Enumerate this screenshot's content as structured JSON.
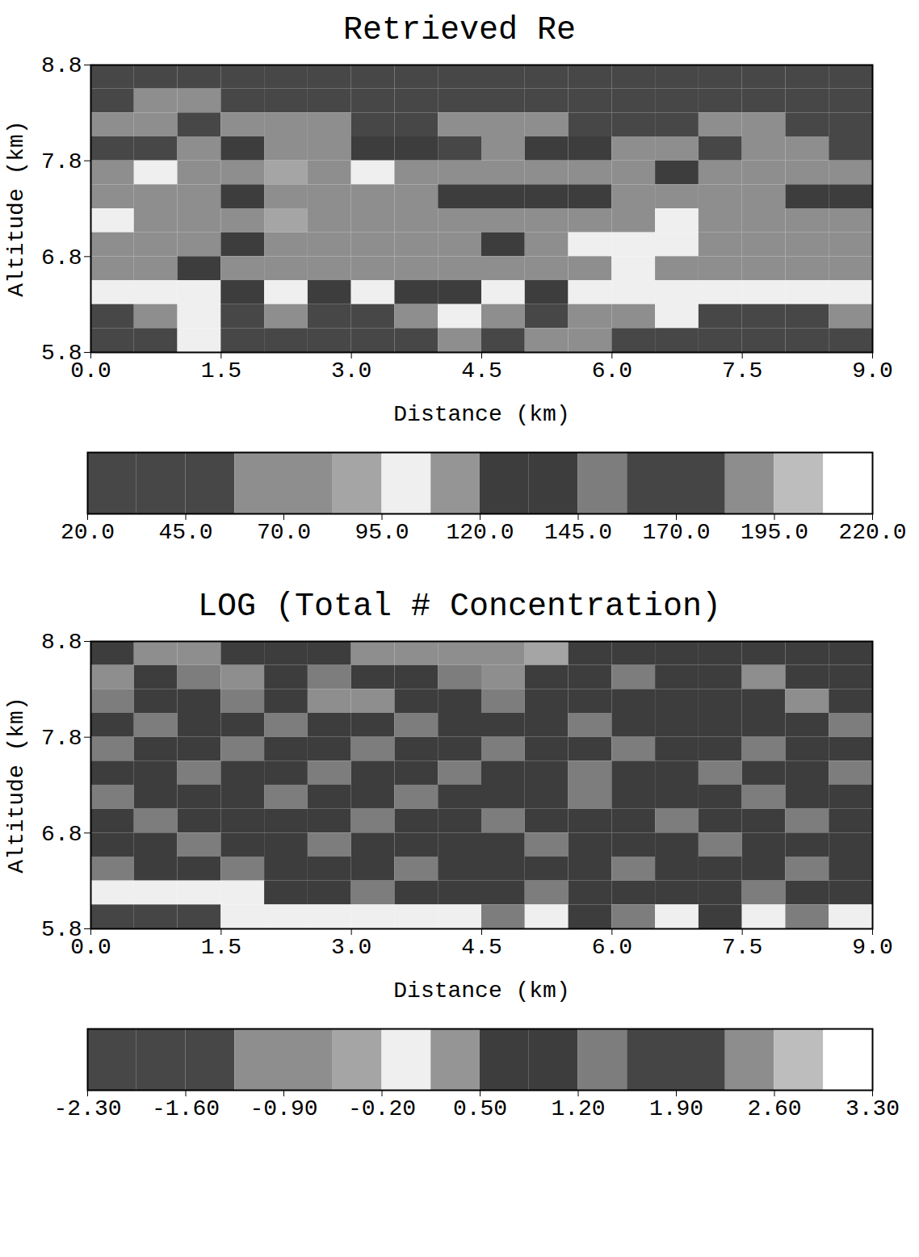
{
  "chart_data": [
    {
      "type": "heatmap",
      "title": "Retrieved Re",
      "x_label": "Distance (km)",
      "y_label": "Altitude (km)",
      "xlim": [
        0,
        9
      ],
      "ylim": [
        5.8,
        8.8
      ],
      "xticks": [
        {
          "value": 0,
          "label": "0.0"
        },
        1.5,
        {
          "value": 3,
          "label": "3.0"
        },
        4.5,
        {
          "value": 6,
          "label": "6.0"
        },
        7.5,
        {
          "value": 9,
          "label": "9.0"
        }
      ],
      "yticks": [
        5.8,
        6.8,
        7.8,
        8.8
      ],
      "x_edges": [
        0,
        0.5,
        1,
        1.5,
        2,
        2.5,
        3,
        3.5,
        4,
        4.5,
        5,
        5.5,
        6,
        6.5,
        7,
        7.5,
        8,
        8.5,
        9
      ],
      "y_edges": [
        8.8,
        8.55,
        8.3,
        8.05,
        7.8,
        7.55,
        7.3,
        7.05,
        6.8,
        6.55,
        6.3,
        6.05,
        5.8
      ],
      "cells": [
        [
          30,
          30,
          30,
          30,
          30,
          30,
          30,
          30,
          30,
          30,
          30,
          30,
          30,
          30,
          30,
          30,
          30,
          30
        ],
        [
          30,
          60,
          60,
          30,
          30,
          30,
          30,
          30,
          30,
          30,
          30,
          30,
          30,
          30,
          30,
          30,
          30,
          30
        ],
        [
          60,
          60,
          30,
          60,
          60,
          60,
          30,
          30,
          60,
          60,
          60,
          30,
          30,
          30,
          60,
          60,
          30,
          30
        ],
        [
          30,
          30,
          60,
          130,
          60,
          60,
          130,
          130,
          30,
          60,
          130,
          130,
          60,
          60,
          30,
          60,
          60,
          30
        ],
        [
          65,
          100,
          65,
          65,
          90,
          65,
          100,
          65,
          65,
          65,
          65,
          65,
          65,
          130,
          65,
          65,
          65,
          65
        ],
        [
          65,
          65,
          65,
          130,
          65,
          65,
          65,
          65,
          130,
          130,
          130,
          130,
          65,
          65,
          65,
          65,
          130,
          130
        ],
        [
          100,
          65,
          65,
          65,
          85,
          65,
          65,
          65,
          65,
          65,
          65,
          65,
          65,
          100,
          65,
          65,
          65,
          65
        ],
        [
          65,
          65,
          65,
          130,
          65,
          65,
          65,
          65,
          65,
          130,
          65,
          100,
          100,
          100,
          65,
          65,
          65,
          65
        ],
        [
          65,
          65,
          130,
          65,
          65,
          65,
          65,
          65,
          65,
          65,
          65,
          65,
          100,
          65,
          65,
          65,
          65,
          65
        ],
        [
          100,
          100,
          100,
          130,
          100,
          130,
          100,
          130,
          130,
          100,
          130,
          100,
          100,
          100,
          100,
          100,
          100,
          100
        ],
        [
          30,
          65,
          100,
          30,
          65,
          30,
          30,
          65,
          100,
          65,
          30,
          65,
          65,
          100,
          30,
          30,
          30,
          65
        ],
        [
          30,
          30,
          100,
          30,
          30,
          30,
          30,
          30,
          65,
          30,
          65,
          65,
          30,
          30,
          30,
          30,
          30,
          30
        ]
      ],
      "colorbar": {
        "range": [
          20,
          220
        ],
        "ticks": [
          {
            "value": 20,
            "label": "20.0"
          },
          {
            "value": 45,
            "label": "45.0"
          },
          {
            "value": 70,
            "label": "70.0"
          },
          {
            "value": 95,
            "label": "95.0"
          },
          {
            "value": 120,
            "label": "120.0"
          },
          {
            "value": 145,
            "label": "145.0"
          },
          {
            "value": 170,
            "label": "170.0"
          },
          {
            "value": 195,
            "label": "195.0"
          },
          {
            "value": 220,
            "label": "220.0"
          }
        ],
        "colors": [
          "#474747",
          "#474747",
          "#474747",
          "#8e8e8e",
          "#8e8e8e",
          "#a5a5a5",
          "#efefef",
          "#959595",
          "#3d3d3d",
          "#3d3d3d",
          "#7d7d7d",
          "#454545",
          "#454545",
          "#8d8d8d",
          "#bdbdbd",
          "#ffffff"
        ]
      }
    },
    {
      "type": "heatmap",
      "title": "LOG (Total # Concentration)",
      "x_label": "Distance (km)",
      "y_label": "Altitude (km)",
      "xlim": [
        0,
        9
      ],
      "ylim": [
        5.8,
        8.8
      ],
      "xticks": [
        {
          "value": 0,
          "label": "0.0"
        },
        1.5,
        {
          "value": 3,
          "label": "3.0"
        },
        4.5,
        {
          "value": 6,
          "label": "6.0"
        },
        7.5,
        {
          "value": 9,
          "label": "9.0"
        }
      ],
      "yticks": [
        5.8,
        6.8,
        7.8,
        8.8
      ],
      "x_edges": [
        0,
        0.5,
        1,
        1.5,
        2,
        2.5,
        3,
        3.5,
        4,
        4.5,
        5,
        5.5,
        6,
        6.5,
        7,
        7.5,
        8,
        8.5,
        9
      ],
      "y_edges": [
        8.8,
        8.55,
        8.3,
        8.05,
        7.8,
        7.55,
        7.3,
        7.05,
        6.8,
        6.55,
        6.3,
        6.05,
        5.8
      ],
      "cells": [
        [
          1.0,
          -1.0,
          -1.0,
          1.0,
          1.0,
          1.0,
          -1.0,
          -1.0,
          -1.0,
          -1.0,
          -0.4,
          1.0,
          1.0,
          1.0,
          1.0,
          1.0,
          1.0,
          1.0
        ],
        [
          -1.0,
          1.0,
          1.3,
          -1.0,
          1.0,
          1.3,
          1.0,
          1.0,
          1.3,
          -1.0,
          1.0,
          1.0,
          1.3,
          1.0,
          1.0,
          -1.0,
          1.0,
          1.0
        ],
        [
          1.3,
          1.0,
          1.0,
          1.3,
          1.0,
          -1.0,
          -1.0,
          1.0,
          1.0,
          1.3,
          1.0,
          1.0,
          1.0,
          1.0,
          1.0,
          1.0,
          -1.0,
          1.0
        ],
        [
          1.0,
          1.3,
          1.0,
          1.0,
          1.3,
          1.0,
          1.0,
          1.3,
          1.0,
          1.0,
          1.0,
          1.3,
          1.0,
          1.0,
          1.0,
          1.0,
          1.0,
          1.3
        ],
        [
          1.3,
          1.0,
          1.0,
          1.3,
          1.0,
          1.0,
          1.3,
          1.0,
          1.0,
          1.3,
          1.0,
          1.0,
          1.3,
          1.0,
          1.0,
          1.3,
          1.0,
          1.0
        ],
        [
          1.0,
          1.0,
          1.3,
          1.0,
          1.0,
          1.3,
          1.0,
          1.0,
          1.3,
          1.0,
          1.0,
          1.3,
          1.0,
          1.0,
          1.3,
          1.0,
          1.0,
          1.3
        ],
        [
          1.3,
          1.0,
          1.0,
          1.0,
          1.3,
          1.0,
          1.0,
          1.3,
          1.0,
          1.0,
          1.0,
          1.3,
          1.0,
          1.0,
          1.0,
          1.3,
          1.0,
          1.0
        ],
        [
          1.0,
          1.3,
          1.0,
          1.0,
          1.0,
          1.0,
          1.3,
          1.0,
          1.0,
          1.3,
          1.0,
          1.0,
          1.0,
          1.3,
          1.0,
          1.0,
          1.3,
          1.0
        ],
        [
          1.0,
          1.0,
          1.3,
          1.0,
          1.0,
          1.3,
          1.0,
          1.0,
          1.0,
          1.0,
          1.3,
          1.0,
          1.0,
          1.0,
          1.3,
          1.0,
          1.0,
          1.0
        ],
        [
          1.3,
          1.0,
          1.0,
          1.3,
          1.0,
          1.0,
          1.0,
          1.3,
          1.0,
          1.0,
          1.0,
          1.0,
          1.3,
          1.0,
          1.0,
          1.0,
          1.3,
          1.0
        ],
        [
          0.0,
          0.0,
          0.0,
          0.0,
          1.0,
          1.0,
          1.3,
          1.0,
          1.0,
          1.0,
          1.3,
          1.0,
          1.0,
          1.0,
          1.0,
          1.3,
          1.0,
          1.0
        ],
        [
          1.7,
          1.7,
          1.7,
          0.0,
          0.0,
          0.0,
          0.0,
          0.0,
          0.0,
          1.3,
          0.0,
          1.0,
          1.3,
          0.0,
          1.0,
          0.0,
          1.3,
          0.0
        ]
      ],
      "colorbar": {
        "range": [
          -2.3,
          3.3
        ],
        "ticks": [
          {
            "value": -2.3,
            "label": "-2.30"
          },
          {
            "value": -1.6,
            "label": "-1.60"
          },
          {
            "value": -0.9,
            "label": "-0.90"
          },
          {
            "value": -0.2,
            "label": "-0.20"
          },
          {
            "value": 0.5,
            "label": "0.50"
          },
          {
            "value": 1.2,
            "label": "1.20"
          },
          {
            "value": 1.9,
            "label": "1.90"
          },
          {
            "value": 2.6,
            "label": "2.60"
          },
          {
            "value": 3.3,
            "label": "3.30"
          }
        ],
        "colors": [
          "#474747",
          "#474747",
          "#474747",
          "#8e8e8e",
          "#8e8e8e",
          "#a5a5a5",
          "#efefef",
          "#959595",
          "#3d3d3d",
          "#3d3d3d",
          "#7d7d7d",
          "#454545",
          "#454545",
          "#8d8d8d",
          "#bdbdbd",
          "#ffffff"
        ]
      }
    }
  ]
}
